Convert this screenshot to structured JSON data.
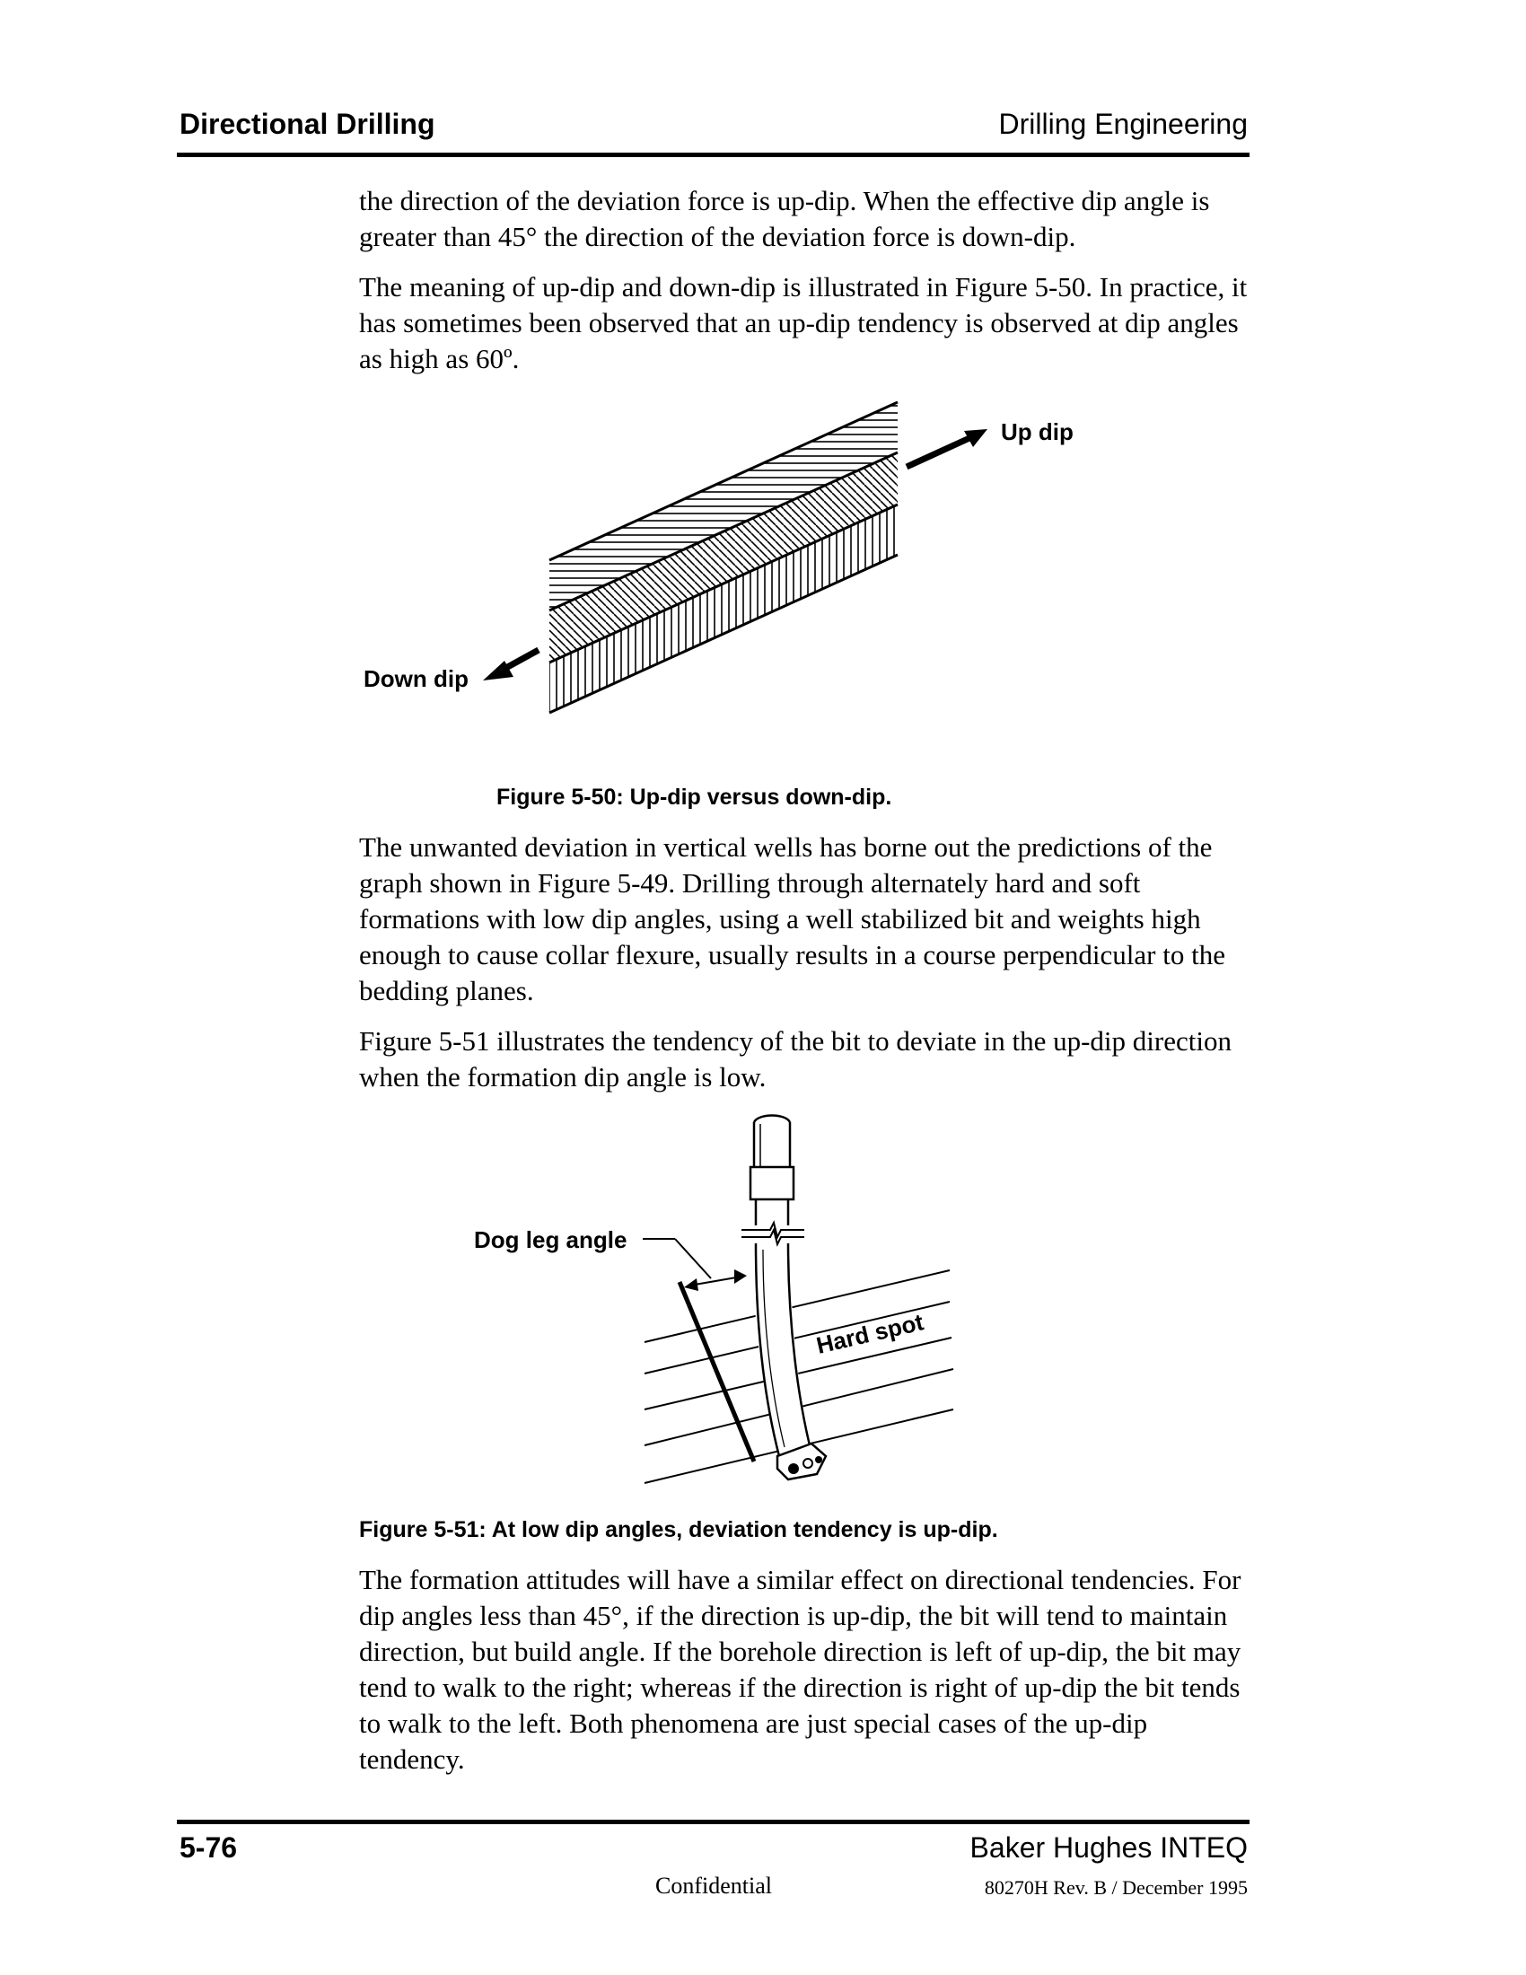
{
  "header": {
    "left": "Directional Drilling",
    "right": "Drilling Engineering"
  },
  "paragraphs": {
    "p1": "the direction of the deviation force is up-dip. When the effective dip angle is greater than 45° the direction of the deviation force is down-dip.",
    "p2": "The meaning of up-dip and down-dip is illustrated in Figure 5-50. In practice, it has sometimes been observed that an up-dip tendency is observed at dip angles as high as 60º.",
    "p3": "The unwanted deviation in vertical wells has borne out the predictions of the graph shown in Figure 5-49. Drilling through alternately hard and soft formations with low dip angles, using a well stabilized bit and weights high enough to cause collar flexure, usually results in a course perpendicular to the bedding planes.",
    "p4": "Figure 5-51 illustrates the tendency of the bit to deviate in the up-dip direction when the formation dip angle is low.",
    "p5": "The formation attitudes will have a similar effect on directional tendencies. For dip angles less than 45°, if the direction is up-dip, the bit will tend to maintain direction, but build angle. If the borehole direction is left of up-dip, the bit may tend to walk to the right; whereas if the direction is right of up-dip the bit tends to walk to the left. Both phenomena are just special cases of the up-dip tendency."
  },
  "figure_50": {
    "label_up": "Up dip",
    "label_down": "Down dip",
    "caption": "Figure 5-50: Up-dip versus down-dip."
  },
  "figure_51": {
    "label_dogleg": "Dog leg angle",
    "label_hardspot": "Hard spot",
    "caption": "Figure 5-51: At low dip angles, deviation tendency is up-dip."
  },
  "footer": {
    "page": "5-76",
    "company": "Baker Hughes INTEQ",
    "confidential": "Confidential",
    "revision": "80270H Rev. B / December 1995"
  }
}
